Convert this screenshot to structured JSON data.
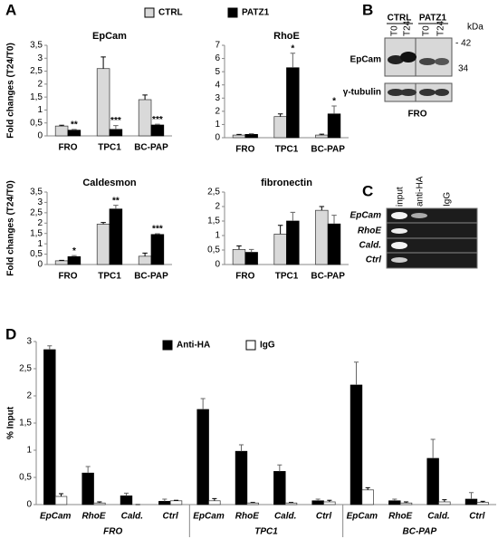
{
  "panel_labels": [
    "A",
    "B",
    "C",
    "D"
  ],
  "chart_data": [
    {
      "type": "bar",
      "title": "EpCam",
      "ylabel": "Fold changes (T24/T0)",
      "categories": [
        "FRO",
        "TPC1",
        "BC-PAP"
      ],
      "series": [
        {
          "name": "CTRL",
          "color": "#d9d9d9",
          "values": [
            0.38,
            2.6,
            1.4
          ],
          "errors": [
            0.03,
            0.45,
            0.18
          ]
        },
        {
          "name": "PATZ1",
          "color": "#000000",
          "values": [
            0.22,
            0.25,
            0.42
          ],
          "errors": [
            0.03,
            0.15,
            0.03
          ],
          "annotations": [
            "**",
            "***",
            "***"
          ]
        }
      ],
      "ylim": [
        0,
        3.5
      ],
      "yticks": [
        0,
        {
          "value": 0.5,
          "label": "0,5"
        },
        1,
        {
          "value": 1.5,
          "label": "1,5"
        },
        2,
        {
          "value": 2.5,
          "label": "2,5"
        },
        3,
        {
          "value": 3.5,
          "label": "3,5"
        }
      ]
    },
    {
      "type": "bar",
      "title": "RhoE",
      "categories": [
        "FRO",
        "TPC1",
        "BC-PAP"
      ],
      "series": [
        {
          "color": "#d9d9d9",
          "values": [
            0.2,
            1.6,
            0.2
          ],
          "errors": [
            0.05,
            0.2,
            0.07
          ]
        },
        {
          "color": "#000000",
          "values": [
            0.25,
            5.3,
            1.8
          ],
          "errors": [
            0.05,
            1.1,
            0.6
          ],
          "annotations": [
            null,
            "*",
            "*"
          ]
        }
      ],
      "ylim": [
        0,
        7
      ],
      "yticks": [
        0,
        1,
        2,
        3,
        4,
        5,
        6,
        7
      ]
    },
    {
      "type": "bar",
      "title": "Caldesmon",
      "ylabel": "Fold changes (T24/T0)",
      "categories": [
        "FRO",
        "TPC1",
        "BC-PAP"
      ],
      "series": [
        {
          "color": "#d9d9d9",
          "values": [
            0.18,
            1.95,
            0.4
          ],
          "errors": [
            0.02,
            0.08,
            0.15
          ]
        },
        {
          "color": "#000000",
          "values": [
            0.38,
            2.68,
            1.45
          ],
          "errors": [
            0.05,
            0.18,
            0.04
          ],
          "annotations": [
            "*",
            "**",
            "***"
          ]
        }
      ],
      "ylim": [
        0,
        3.5
      ],
      "yticks": [
        0,
        {
          "value": 0.5,
          "label": "0,5"
        },
        1,
        {
          "value": 1.5,
          "label": "1,5"
        },
        2,
        {
          "value": 2.5,
          "label": "2,5"
        },
        3,
        {
          "value": 3.5,
          "label": "3,5"
        }
      ]
    },
    {
      "type": "bar",
      "title": "fibronectin",
      "categories": [
        "FRO",
        "TPC1",
        "BC-PAP"
      ],
      "series": [
        {
          "color": "#d9d9d9",
          "values": [
            0.52,
            1.05,
            1.87
          ],
          "errors": [
            0.12,
            0.3,
            0.13
          ]
        },
        {
          "color": "#000000",
          "values": [
            0.42,
            1.5,
            1.4
          ],
          "errors": [
            0.1,
            0.3,
            0.3
          ]
        }
      ],
      "ylim": [
        0,
        2.5
      ],
      "yticks": [
        0,
        {
          "value": 0.5,
          "label": "0,5"
        },
        1,
        {
          "value": 1.5,
          "label": "1,5"
        },
        2,
        {
          "value": 2.5,
          "label": "2,5"
        }
      ]
    },
    {
      "type": "bar",
      "ylabel": "% Input",
      "categories": [
        "EpCam",
        "RhoE",
        "Cald.",
        "Ctrl",
        "EpCam",
        "RhoE",
        "Cald.",
        "Ctrl",
        "EpCam",
        "RhoE",
        "Cald.",
        "Ctrl"
      ],
      "groups": [
        "FRO",
        "TPC1",
        "BC-PAP"
      ],
      "series": [
        {
          "name": "Anti-HA",
          "color": "#000000",
          "values": [
            2.85,
            0.58,
            0.16,
            0.06,
            1.75,
            0.98,
            0.61,
            0.07,
            2.2,
            0.07,
            0.85,
            0.1
          ],
          "errors": [
            0.07,
            0.12,
            0.05,
            0.04,
            0.2,
            0.12,
            0.12,
            0.03,
            0.42,
            0.03,
            0.35,
            0.12
          ]
        },
        {
          "name": "IgG",
          "color": "#ffffff",
          "values": [
            0.15,
            0.03,
            0,
            0.07,
            0.07,
            0.03,
            0.03,
            0.05,
            0.27,
            0.03,
            0.05,
            0.04
          ],
          "errors": [
            0.05,
            0.02,
            0,
            0.01,
            0.04,
            0.01,
            0.01,
            0.03,
            0.04,
            0.02,
            0.04,
            0.02
          ]
        }
      ],
      "ylim": [
        0,
        3
      ],
      "yticks": [
        0,
        {
          "value": 0.5,
          "label": "0,5"
        },
        1,
        {
          "value": 1.5,
          "label": "1,5"
        },
        2,
        {
          "value": 2.5,
          "label": "2,5"
        },
        3
      ]
    }
  ],
  "blot": {
    "conditions": [
      "CTRL",
      "PATZ1"
    ],
    "lanes": [
      "T0",
      "T24",
      "T0",
      "T24"
    ],
    "unit": "kDa",
    "markers": [
      "- 42",
      "34"
    ],
    "proteins": [
      "EpCam",
      "γ-tubulin"
    ],
    "cell_line": "FRO"
  },
  "gel": {
    "lanes": [
      "input",
      "anti-HA",
      "IgG"
    ],
    "rows": [
      "EpCam",
      "RhoE",
      "Cald.",
      "Ctrl"
    ]
  }
}
